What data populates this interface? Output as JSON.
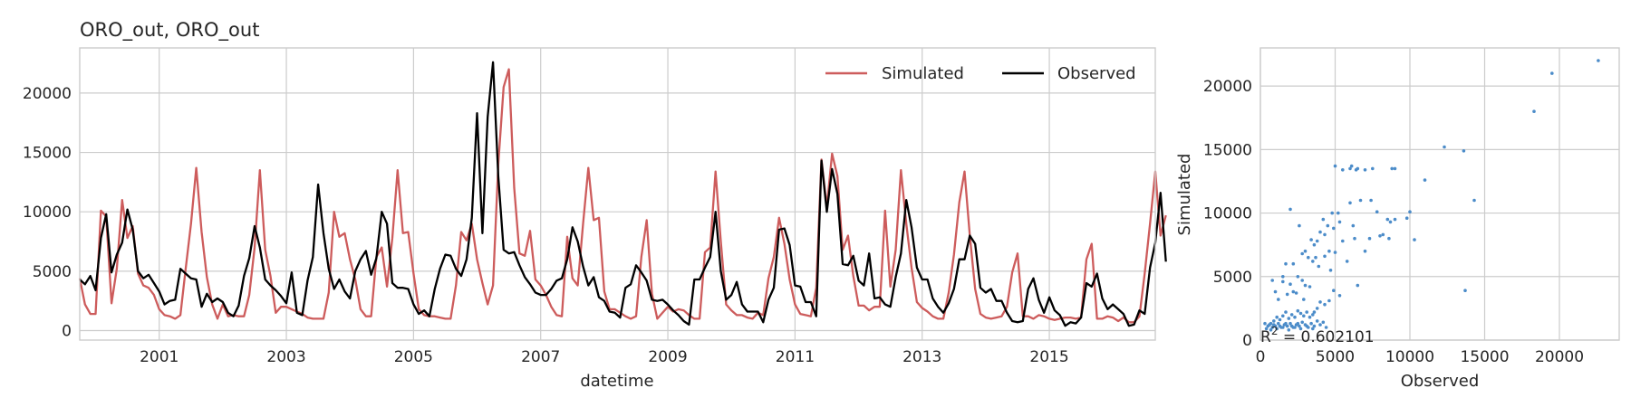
{
  "chart_data": [
    {
      "type": "line",
      "title": "ORO_out, ORO_out",
      "xlabel": "datetime",
      "ylabel": "",
      "x_axis": "monthly dates, Oct 1999 to Sep 2016",
      "xlim": [
        "1999-10",
        "2016-09"
      ],
      "xticks": [
        "2001",
        "2003",
        "2005",
        "2007",
        "2009",
        "2011",
        "2013",
        "2015"
      ],
      "ylim": [
        -800,
        23800
      ],
      "yticks": [
        "0",
        "5000",
        "10000",
        "15000",
        "20000"
      ],
      "grid": true,
      "legend": "top-right",
      "series": [
        {
          "name": "Simulated",
          "color": "#cd5c5c",
          "values": [
            4400,
            2200,
            1400,
            1400,
            10100,
            9600,
            2300,
            5200,
            11000,
            7800,
            8800,
            4800,
            3800,
            3600,
            3000,
            1800,
            1300,
            1200,
            1000,
            1300,
            5200,
            9000,
            13700,
            8300,
            4500,
            2200,
            1000,
            2200,
            1200,
            1300,
            1200,
            1200,
            3000,
            7000,
            13500,
            6800,
            4600,
            1500,
            2000,
            2000,
            1800,
            1600,
            1400,
            1100,
            1000,
            1000,
            1000,
            3200,
            10000,
            7900,
            8200,
            6000,
            4300,
            1800,
            1200,
            1200,
            6200,
            7000,
            3700,
            7800,
            13500,
            8200,
            8300,
            4800,
            1800,
            1300,
            1200,
            1200,
            1100,
            1000,
            1000,
            3800,
            8300,
            7600,
            9000,
            6000,
            4000,
            2200,
            3800,
            14000,
            20500,
            22000,
            12000,
            6500,
            6300,
            8400,
            4300,
            3800,
            3000,
            2000,
            1300,
            1200,
            7900,
            4400,
            3800,
            9000,
            13700,
            9300,
            9500,
            3300,
            1800,
            1800,
            1500,
            1200,
            1000,
            1200,
            6200,
            9300,
            3100,
            1000,
            1500,
            2000,
            1600,
            1800,
            1700,
            1300,
            1000,
            1000,
            6600,
            7000,
            13400,
            7500,
            2200,
            1700,
            1300,
            1300,
            1100,
            1000,
            1500,
            1300,
            4400,
            6200,
            9500,
            7300,
            4300,
            2200,
            1400,
            1300,
            1200,
            3600,
            14400,
            10400,
            14900,
            13000,
            6800,
            8000,
            4600,
            2100,
            2100,
            1700,
            2000,
            2000,
            10100,
            3700,
            6800,
            13500,
            9000,
            5300,
            2400,
            1900,
            1600,
            1200,
            1000,
            1000,
            3200,
            6400,
            10800,
            13400,
            8000,
            3500,
            1400,
            1100,
            1000,
            1100,
            1200,
            2000,
            4900,
            6500,
            1200,
            1200,
            1000,
            1300,
            1200,
            1000,
            900,
            1000,
            1100,
            1100,
            1000,
            1100,
            6000,
            7300,
            1000,
            1000,
            1200,
            1100,
            800,
            1100,
            700,
            700,
            1200,
            4800,
            9000,
            13400,
            8000,
            9700
          ]
        },
        {
          "name": "Observed",
          "color": "#000000",
          "values": [
            4300,
            3900,
            4600,
            3400,
            7800,
            9800,
            4900,
            6400,
            7400,
            10200,
            8500,
            5000,
            4400,
            4700,
            4000,
            3300,
            2200,
            2500,
            2600,
            5200,
            4800,
            4400,
            4300,
            2000,
            3100,
            2400,
            2700,
            2400,
            1500,
            1200,
            2100,
            4600,
            6100,
            8800,
            7000,
            4300,
            3800,
            3400,
            2900,
            2300,
            4900,
            1500,
            1300,
            4200,
            6200,
            12300,
            8200,
            5200,
            3500,
            4300,
            3300,
            2700,
            5000,
            6000,
            6700,
            4700,
            6100,
            10000,
            9000,
            4000,
            3600,
            3600,
            3500,
            2200,
            1400,
            1700,
            1200,
            3500,
            5200,
            6400,
            6300,
            5200,
            4600,
            6000,
            9500,
            18300,
            8200,
            18000,
            22600,
            13000,
            6800,
            6500,
            6600,
            5500,
            4500,
            3900,
            3200,
            3000,
            3000,
            3500,
            4200,
            4400,
            6000,
            8700,
            7500,
            5400,
            3800,
            4500,
            2800,
            2500,
            1600,
            1500,
            1100,
            3600,
            3900,
            5500,
            4900,
            4200,
            2600,
            2500,
            2600,
            2200,
            1700,
            1300,
            800,
            500,
            4300,
            4300,
            5300,
            6200,
            10000,
            5000,
            2600,
            3000,
            4100,
            2200,
            1600,
            1600,
            1600,
            700,
            2600,
            3600,
            8500,
            8600,
            7200,
            3800,
            3700,
            2400,
            2400,
            1200,
            14300,
            10000,
            13600,
            11500,
            5600,
            5500,
            6300,
            4200,
            3800,
            6500,
            2700,
            2800,
            2200,
            2000,
            4500,
            6500,
            11000,
            8700,
            5300,
            4300,
            4300,
            2700,
            2000,
            1500,
            2300,
            3500,
            6000,
            6000,
            8000,
            7300,
            3600,
            3200,
            3500,
            2500,
            2500,
            1500,
            800,
            700,
            800,
            3500,
            4400,
            2600,
            1500,
            2800,
            1700,
            1300,
            400,
            700,
            600,
            1100,
            4000,
            3700,
            4800,
            2700,
            1800,
            2200,
            1800,
            1400,
            400,
            500,
            1700,
            1400,
            5300,
            7400,
            11600,
            5800
          ]
        }
      ]
    },
    {
      "type": "scatter",
      "xlabel": "Observed",
      "ylabel": "Simulated",
      "xlim": [
        0,
        24000
      ],
      "ylim": [
        0,
        23000
      ],
      "xticks": [
        "0",
        "5000",
        "10000",
        "15000",
        "20000"
      ],
      "yticks": [
        "0",
        "5000",
        "10000",
        "15000",
        "20000"
      ],
      "grid": true,
      "color": "#4c8cc9",
      "annotation_prefix": "R",
      "annotation_sup": "2",
      "annotation_value": " = 0.602101",
      "points": [
        [
          22600,
          22000
        ],
        [
          19500,
          21000
        ],
        [
          18300,
          18000
        ],
        [
          14300,
          11000
        ],
        [
          13600,
          14900
        ],
        [
          12300,
          15200
        ],
        [
          11000,
          12600
        ],
        [
          10300,
          7900
        ],
        [
          10000,
          10100
        ],
        [
          9800,
          9600
        ],
        [
          9000,
          13500
        ],
        [
          9000,
          9500
        ],
        [
          8800,
          13500
        ],
        [
          8600,
          8000
        ],
        [
          8500,
          9500
        ],
        [
          8200,
          8300
        ],
        [
          8000,
          8200
        ],
        [
          7800,
          10100
        ],
        [
          7500,
          13500
        ],
        [
          7400,
          11000
        ],
        [
          7000,
          13400
        ],
        [
          7000,
          7000
        ],
        [
          6700,
          11000
        ],
        [
          6500,
          13500
        ],
        [
          6400,
          13400
        ],
        [
          6300,
          8000
        ],
        [
          6200,
          9000
        ],
        [
          6100,
          13700
        ],
        [
          6000,
          13500
        ],
        [
          6000,
          10800
        ],
        [
          5500,
          13400
        ],
        [
          5300,
          9300
        ],
        [
          5200,
          10000
        ],
        [
          5000,
          13700
        ],
        [
          5000,
          6900
        ],
        [
          4900,
          8800
        ],
        [
          4800,
          10000
        ],
        [
          4600,
          7000
        ],
        [
          4500,
          9000
        ],
        [
          4300,
          8300
        ],
        [
          4300,
          6600
        ],
        [
          4200,
          9500
        ],
        [
          4000,
          8500
        ],
        [
          3800,
          7800
        ],
        [
          3600,
          7500
        ],
        [
          3500,
          6200
        ],
        [
          3400,
          7900
        ],
        [
          3200,
          6500
        ],
        [
          3000,
          7000
        ],
        [
          2800,
          6800
        ],
        [
          2600,
          9000
        ],
        [
          2500,
          5000
        ],
        [
          2200,
          6000
        ],
        [
          2000,
          10300
        ],
        [
          1700,
          6000
        ],
        [
          1500,
          5000
        ],
        [
          13700,
          3900
        ],
        [
          4900,
          3900
        ],
        [
          3300,
          4200
        ],
        [
          3000,
          4300
        ],
        [
          2800,
          4700
        ],
        [
          2400,
          3700
        ],
        [
          2200,
          3800
        ],
        [
          2000,
          4400
        ],
        [
          1800,
          3600
        ],
        [
          1500,
          4600
        ],
        [
          1200,
          3200
        ],
        [
          1000,
          3800
        ],
        [
          800,
          4700
        ],
        [
          4600,
          3100
        ],
        [
          4300,
          2800
        ],
        [
          4000,
          3000
        ],
        [
          3800,
          2500
        ],
        [
          3600,
          2200
        ],
        [
          3500,
          2000
        ],
        [
          3300,
          1800
        ],
        [
          3100,
          2200
        ],
        [
          2900,
          1900
        ],
        [
          2700,
          2100
        ],
        [
          2500,
          2300
        ],
        [
          2300,
          1800
        ],
        [
          2100,
          2000
        ],
        [
          1900,
          1700
        ],
        [
          1700,
          2200
        ],
        [
          1500,
          1900
        ],
        [
          1300,
          1600
        ],
        [
          1100,
          1800
        ],
        [
          900,
          1500
        ],
        [
          700,
          1300
        ],
        [
          500,
          1100
        ],
        [
          600,
          1200
        ],
        [
          800,
          1000
        ],
        [
          1000,
          1100
        ],
        [
          1200,
          1300
        ],
        [
          1400,
          1000
        ],
        [
          1600,
          1200
        ],
        [
          1800,
          1100
        ],
        [
          2000,
          1300
        ],
        [
          2200,
          1000
        ],
        [
          2400,
          1200
        ],
        [
          2600,
          1100
        ],
        [
          2800,
          1400
        ],
        [
          3000,
          1200
        ],
        [
          3200,
          1000
        ],
        [
          3400,
          1300
        ],
        [
          3600,
          1100
        ],
        [
          3800,
          1500
        ],
        [
          4000,
          1200
        ],
        [
          4200,
          1400
        ],
        [
          4400,
          1000
        ],
        [
          400,
          900
        ],
        [
          700,
          800
        ],
        [
          1100,
          900
        ],
        [
          1500,
          1000
        ],
        [
          1900,
          800
        ],
        [
          2300,
          1000
        ],
        [
          2700,
          900
        ],
        [
          3100,
          1100
        ],
        [
          3500,
          900
        ],
        [
          300,
          1300
        ],
        [
          900,
          1200
        ],
        [
          1300,
          1100
        ],
        [
          1700,
          1300
        ],
        [
          2100,
          1100
        ],
        [
          2500,
          1300
        ],
        [
          5300,
          3500
        ],
        [
          5800,
          6200
        ],
        [
          6500,
          4300
        ],
        [
          7300,
          8000
        ],
        [
          8700,
          9300
        ],
        [
          5500,
          7800
        ],
        [
          4700,
          5500
        ],
        [
          3900,
          5800
        ],
        [
          3700,
          6500
        ],
        [
          2900,
          3200
        ]
      ]
    }
  ]
}
